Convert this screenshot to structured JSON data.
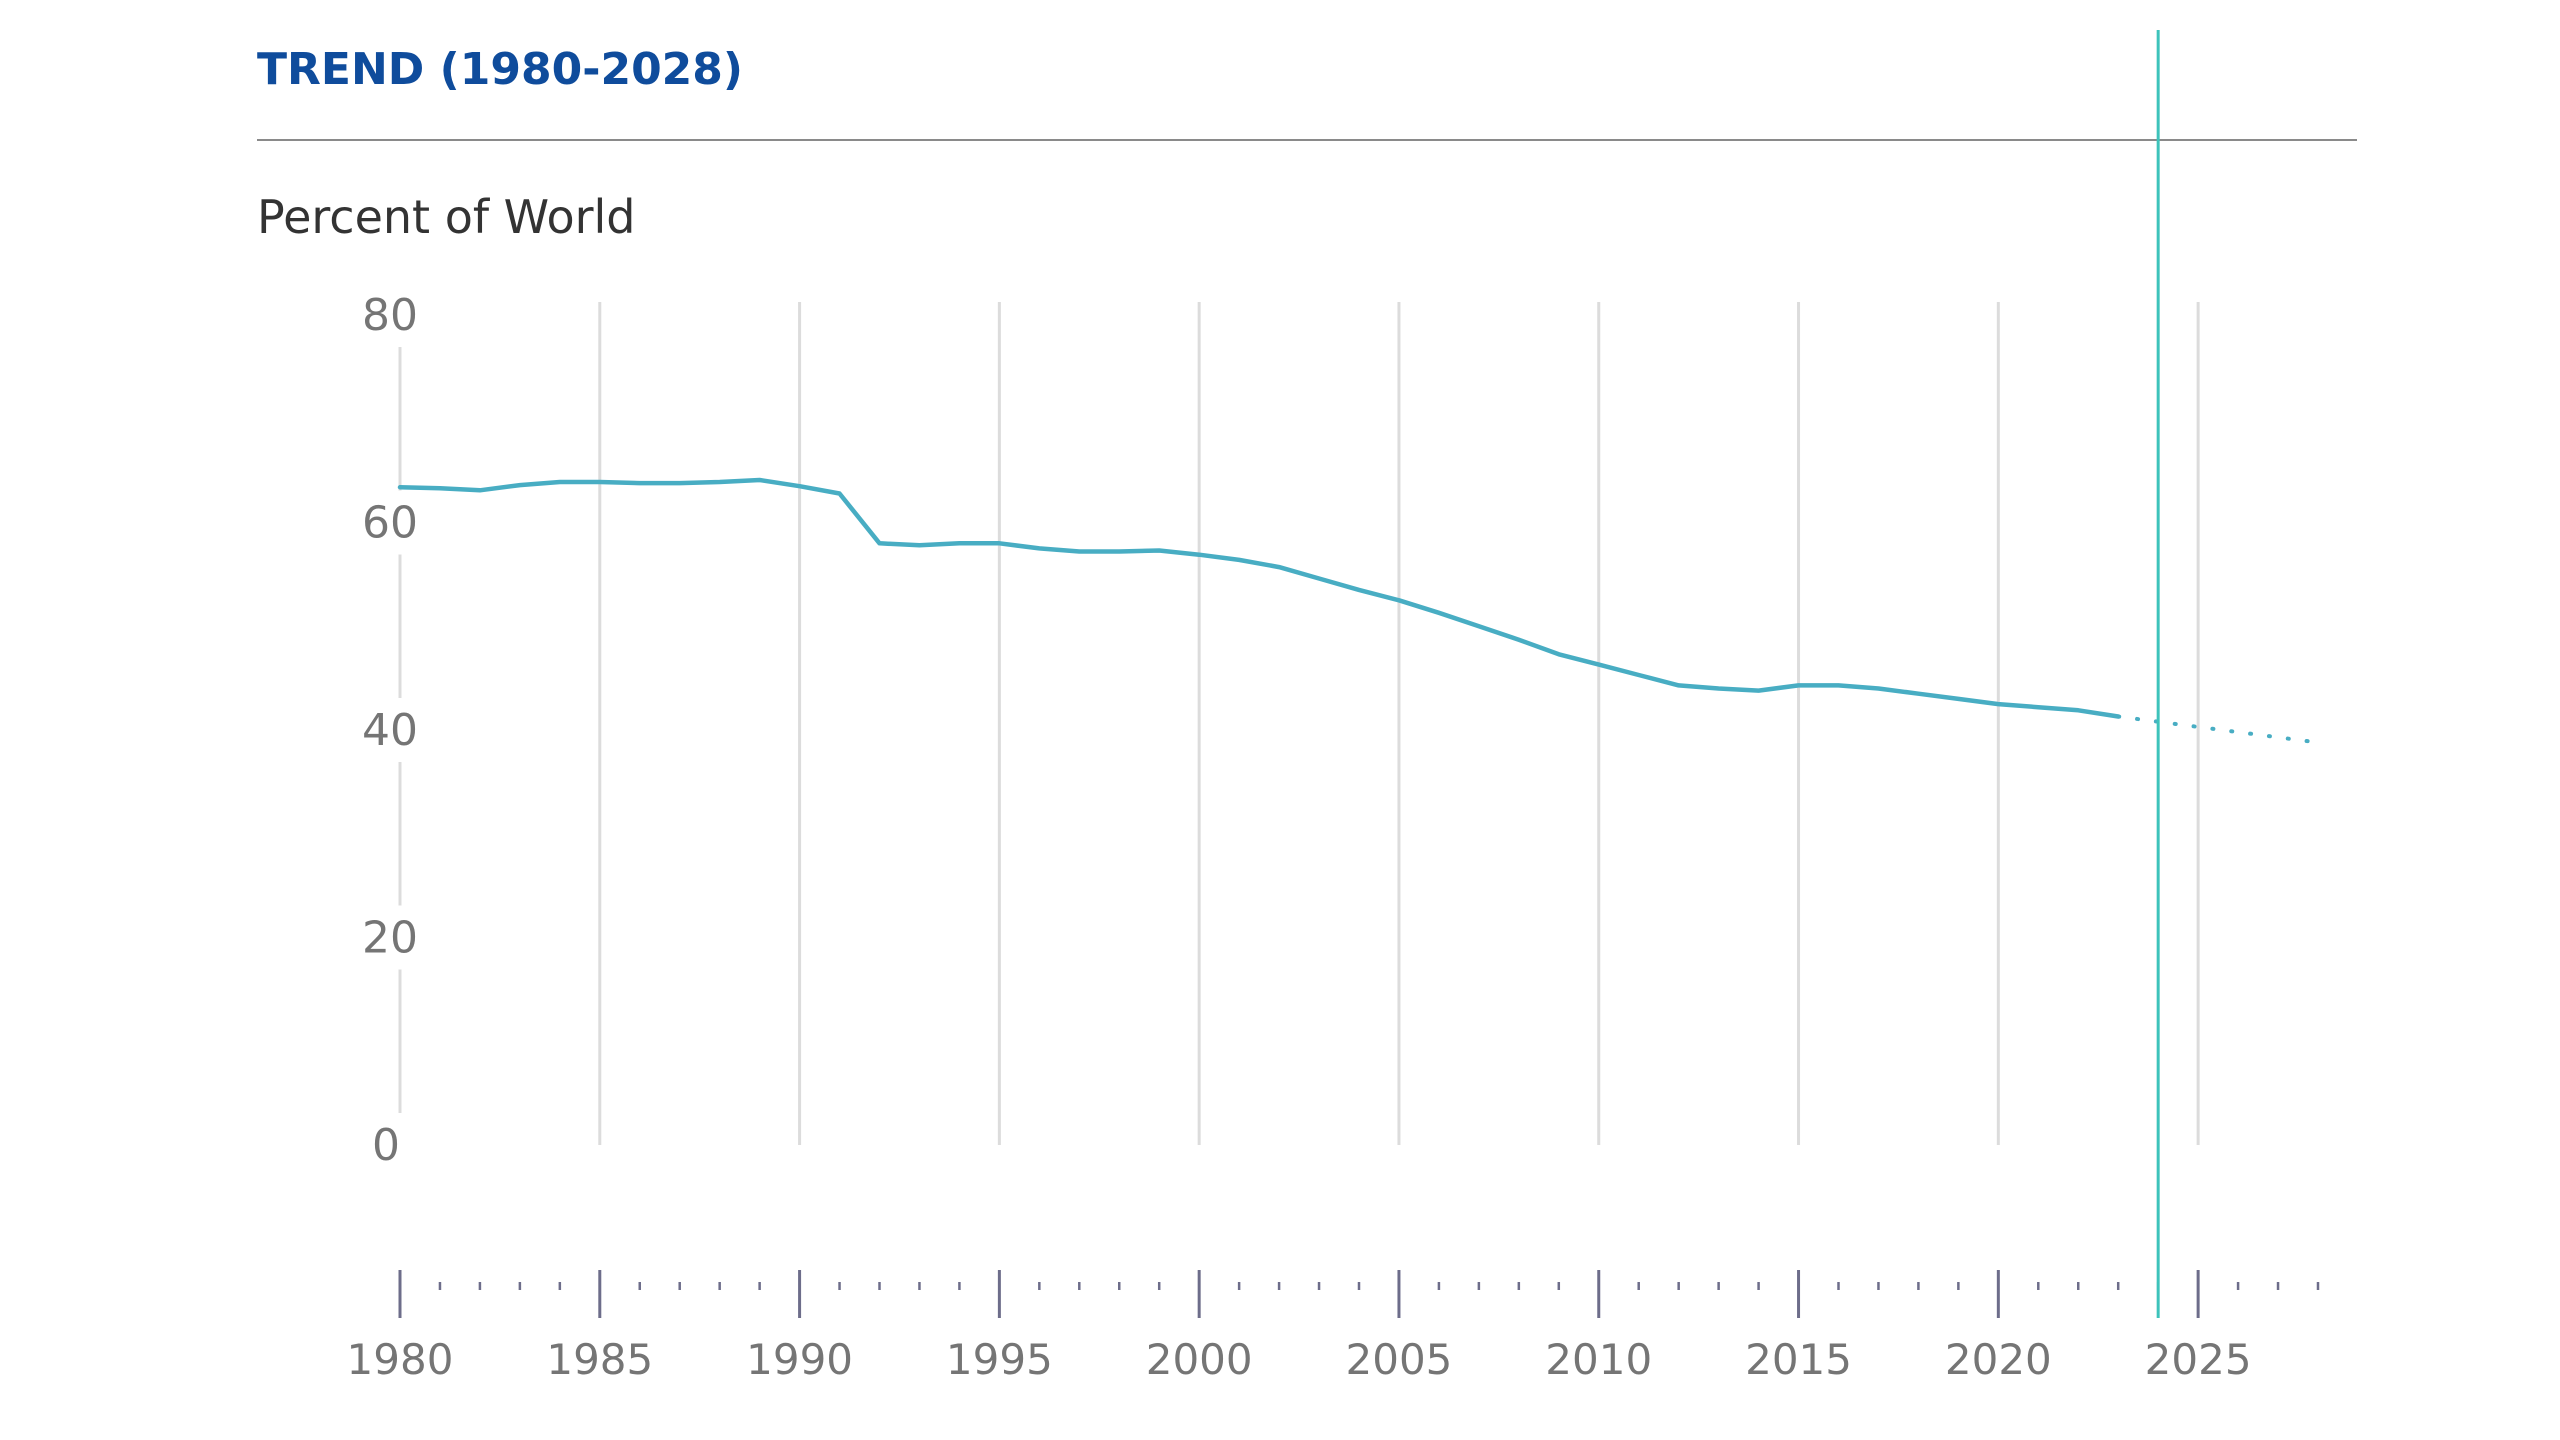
{
  "header": {
    "title": "TREND (1980-2028)",
    "units_label": "Percent of World"
  },
  "colors": {
    "title": "#0f4c9c",
    "series": "#48adc3",
    "marker": "#3dc3bb",
    "grid": "#dcdcdc",
    "axis": "#6d6d8a"
  },
  "chart_data": {
    "type": "line",
    "title": "TREND (1980-2028)",
    "ylabel": "Percent of World",
    "xlabel": "",
    "xlim": [
      1980,
      2028
    ],
    "ylim": [
      0,
      80
    ],
    "yticks": [
      0,
      20,
      40,
      60,
      80
    ],
    "xticks": [
      1980,
      1985,
      1990,
      1995,
      2000,
      2005,
      2010,
      2015,
      2020,
      2025
    ],
    "grid": "vertical",
    "marker_year": 2024,
    "series": [
      {
        "style": "solid",
        "x": [
          1980,
          1981,
          1982,
          1983,
          1984,
          1985,
          1986,
          1987,
          1988,
          1989,
          1990,
          1991,
          1992,
          1993,
          1994,
          1995,
          1996,
          1997,
          1998,
          1999,
          2000,
          2001,
          2002,
          2003,
          2004,
          2005,
          2006,
          2007,
          2008,
          2009,
          2010,
          2011,
          2012,
          2013,
          2014,
          2015,
          2016,
          2017,
          2018,
          2019,
          2020,
          2021,
          2022,
          2023
        ],
        "y": [
          63.4,
          63.3,
          63.1,
          63.6,
          63.9,
          63.9,
          63.8,
          63.8,
          63.9,
          64.1,
          63.5,
          62.8,
          58.0,
          57.8,
          58.0,
          58.0,
          57.5,
          57.2,
          57.2,
          57.3,
          56.9,
          56.4,
          55.7,
          54.6,
          53.5,
          52.5,
          51.3,
          50.0,
          48.7,
          47.3,
          46.3,
          45.3,
          44.3,
          44.0,
          43.8,
          44.3,
          44.3,
          44.0,
          43.5,
          43.0,
          42.5,
          42.2,
          41.9,
          41.3
        ]
      },
      {
        "style": "dotted",
        "x": [
          2023,
          2024,
          2025,
          2026,
          2027,
          2028
        ],
        "y": [
          41.3,
          40.8,
          40.3,
          39.8,
          39.3,
          38.8
        ]
      }
    ]
  }
}
